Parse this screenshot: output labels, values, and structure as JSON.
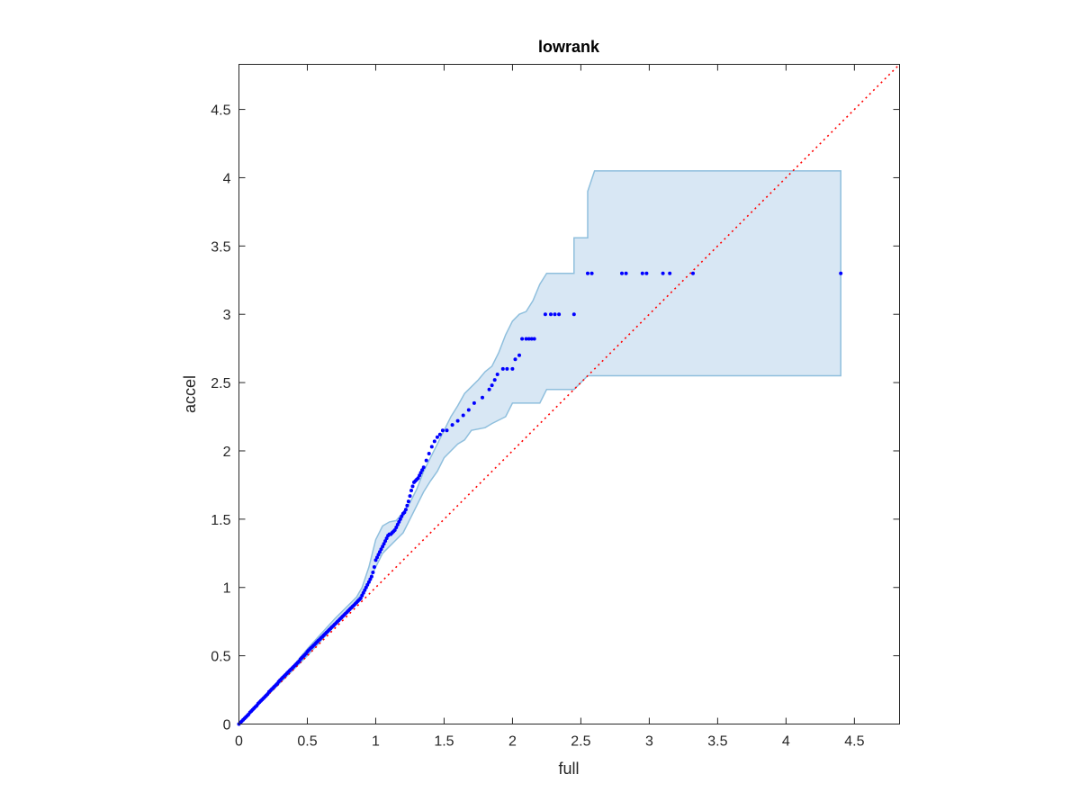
{
  "chart_data": {
    "type": "scatter",
    "title": "lowrank",
    "xlabel": "full",
    "ylabel": "accel",
    "xlim": [
      0,
      4.83
    ],
    "ylim": [
      0,
      4.83
    ],
    "xticks": [
      0,
      0.5,
      1,
      1.5,
      2,
      2.5,
      3,
      3.5,
      4,
      4.5
    ],
    "yticks": [
      0,
      0.5,
      1,
      1.5,
      2,
      2.5,
      3,
      3.5,
      4,
      4.5
    ],
    "xtick_labels": [
      "0",
      "0.5",
      "1",
      "1.5",
      "2",
      "2.5",
      "3",
      "3.5",
      "4",
      "4.5"
    ],
    "ytick_labels": [
      "0",
      "0.5",
      "1",
      "1.5",
      "2",
      "2.5",
      "3",
      "3.5",
      "4",
      "4.5"
    ],
    "grid": false,
    "colors": {
      "points": "#0000ff",
      "reference_line": "#ff0000",
      "band_fill": "#d8e7f4",
      "band_edge": "#8fbfdd",
      "axes": "#262626"
    },
    "reference_line": {
      "x": [
        0,
        4.83
      ],
      "y": [
        0,
        4.83
      ],
      "style": "dotted"
    },
    "band_upper": [
      [
        0,
        0
      ],
      [
        0.1,
        0.11
      ],
      [
        0.2,
        0.22
      ],
      [
        0.3,
        0.33
      ],
      [
        0.4,
        0.43
      ],
      [
        0.5,
        0.55
      ],
      [
        0.6,
        0.66
      ],
      [
        0.7,
        0.77
      ],
      [
        0.8,
        0.87
      ],
      [
        0.86,
        0.93
      ],
      [
        0.9,
        1.0
      ],
      [
        0.95,
        1.15
      ],
      [
        1.0,
        1.35
      ],
      [
        1.05,
        1.45
      ],
      [
        1.1,
        1.48
      ],
      [
        1.15,
        1.49
      ],
      [
        1.2,
        1.55
      ],
      [
        1.25,
        1.62
      ],
      [
        1.3,
        1.72
      ],
      [
        1.35,
        1.85
      ],
      [
        1.4,
        1.95
      ],
      [
        1.45,
        2.05
      ],
      [
        1.5,
        2.15
      ],
      [
        1.55,
        2.25
      ],
      [
        1.6,
        2.33
      ],
      [
        1.65,
        2.42
      ],
      [
        1.7,
        2.47
      ],
      [
        1.75,
        2.52
      ],
      [
        1.8,
        2.58
      ],
      [
        1.85,
        2.62
      ],
      [
        1.9,
        2.72
      ],
      [
        1.95,
        2.85
      ],
      [
        2.0,
        2.95
      ],
      [
        2.05,
        3.0
      ],
      [
        2.1,
        3.02
      ],
      [
        2.15,
        3.1
      ],
      [
        2.2,
        3.22
      ],
      [
        2.25,
        3.3
      ],
      [
        2.45,
        3.3
      ],
      [
        2.45,
        3.56
      ],
      [
        2.55,
        3.56
      ],
      [
        2.55,
        3.9
      ],
      [
        2.6,
        4.05
      ],
      [
        4.4,
        4.05
      ]
    ],
    "band_lower": [
      [
        4.4,
        2.55
      ],
      [
        2.55,
        2.55
      ],
      [
        2.5,
        2.5
      ],
      [
        2.45,
        2.45
      ],
      [
        2.25,
        2.45
      ],
      [
        2.2,
        2.35
      ],
      [
        2.0,
        2.35
      ],
      [
        1.95,
        2.25
      ],
      [
        1.85,
        2.2
      ],
      [
        1.8,
        2.17
      ],
      [
        1.7,
        2.15
      ],
      [
        1.65,
        2.08
      ],
      [
        1.6,
        2.05
      ],
      [
        1.55,
        2.0
      ],
      [
        1.5,
        1.95
      ],
      [
        1.45,
        1.85
      ],
      [
        1.4,
        1.78
      ],
      [
        1.35,
        1.7
      ],
      [
        1.3,
        1.6
      ],
      [
        1.25,
        1.5
      ],
      [
        1.2,
        1.4
      ],
      [
        1.15,
        1.35
      ],
      [
        1.1,
        1.3
      ],
      [
        1.05,
        1.25
      ],
      [
        1.0,
        1.15
      ],
      [
        0.95,
        1.05
      ],
      [
        0.9,
        0.96
      ],
      [
        0.85,
        0.89
      ],
      [
        0.8,
        0.83
      ],
      [
        0.7,
        0.72
      ],
      [
        0.6,
        0.61
      ],
      [
        0.5,
        0.5
      ],
      [
        0.4,
        0.4
      ],
      [
        0.3,
        0.3
      ],
      [
        0.2,
        0.2
      ],
      [
        0.1,
        0.1
      ],
      [
        0,
        0
      ]
    ],
    "points_x": [
      0.0,
      0.01,
      0.02,
      0.03,
      0.04,
      0.05,
      0.06,
      0.07,
      0.08,
      0.09,
      0.1,
      0.11,
      0.12,
      0.13,
      0.14,
      0.15,
      0.16,
      0.17,
      0.18,
      0.19,
      0.2,
      0.21,
      0.22,
      0.23,
      0.24,
      0.25,
      0.26,
      0.27,
      0.28,
      0.29,
      0.3,
      0.31,
      0.32,
      0.33,
      0.34,
      0.35,
      0.36,
      0.37,
      0.38,
      0.39,
      0.4,
      0.41,
      0.42,
      0.43,
      0.44,
      0.45,
      0.46,
      0.47,
      0.48,
      0.49,
      0.5,
      0.51,
      0.52,
      0.53,
      0.54,
      0.55,
      0.56,
      0.57,
      0.58,
      0.59,
      0.6,
      0.61,
      0.62,
      0.63,
      0.64,
      0.65,
      0.66,
      0.67,
      0.68,
      0.69,
      0.7,
      0.71,
      0.72,
      0.73,
      0.74,
      0.75,
      0.76,
      0.77,
      0.78,
      0.79,
      0.8,
      0.81,
      0.82,
      0.83,
      0.84,
      0.85,
      0.86,
      0.87,
      0.88,
      0.89,
      0.9,
      0.91,
      0.92,
      0.93,
      0.94,
      0.95,
      0.96,
      0.97,
      0.98,
      0.99,
      1.0,
      1.01,
      1.02,
      1.03,
      1.04,
      1.05,
      1.06,
      1.07,
      1.08,
      1.09,
      1.1,
      1.11,
      1.12,
      1.13,
      1.14,
      1.15,
      1.16,
      1.17,
      1.18,
      1.19,
      1.2,
      1.21,
      1.22,
      1.23,
      1.24,
      1.25,
      1.26,
      1.27,
      1.28,
      1.29,
      1.3,
      1.31,
      1.32,
      1.33,
      1.34,
      1.35,
      1.37,
      1.39,
      1.41,
      1.43,
      1.45,
      1.47,
      1.49,
      1.52,
      1.56,
      1.6,
      1.64,
      1.68,
      1.72,
      1.78,
      1.83,
      1.85,
      1.87,
      1.89,
      1.93,
      1.96,
      2.0,
      2.02,
      2.05,
      2.07,
      2.1,
      2.12,
      2.14,
      2.16,
      2.24,
      2.28,
      2.31,
      2.34,
      2.45,
      2.55,
      2.58,
      2.8,
      2.83,
      2.95,
      2.98,
      3.1,
      3.15,
      3.32,
      4.4
    ],
    "points_y": [
      0.0,
      0.01,
      0.02,
      0.03,
      0.04,
      0.05,
      0.06,
      0.07,
      0.085,
      0.095,
      0.105,
      0.115,
      0.125,
      0.135,
      0.15,
      0.16,
      0.17,
      0.18,
      0.19,
      0.2,
      0.21,
      0.22,
      0.235,
      0.245,
      0.255,
      0.265,
      0.275,
      0.285,
      0.295,
      0.31,
      0.32,
      0.33,
      0.34,
      0.35,
      0.36,
      0.37,
      0.38,
      0.39,
      0.4,
      0.41,
      0.42,
      0.43,
      0.44,
      0.45,
      0.46,
      0.475,
      0.485,
      0.495,
      0.505,
      0.515,
      0.53,
      0.54,
      0.55,
      0.56,
      0.57,
      0.58,
      0.59,
      0.6,
      0.61,
      0.62,
      0.63,
      0.64,
      0.65,
      0.66,
      0.67,
      0.68,
      0.69,
      0.7,
      0.71,
      0.72,
      0.73,
      0.74,
      0.75,
      0.76,
      0.77,
      0.78,
      0.79,
      0.8,
      0.81,
      0.82,
      0.83,
      0.84,
      0.85,
      0.86,
      0.87,
      0.88,
      0.89,
      0.9,
      0.91,
      0.92,
      0.94,
      0.96,
      0.98,
      1.0,
      1.02,
      1.04,
      1.06,
      1.08,
      1.11,
      1.15,
      1.2,
      1.22,
      1.24,
      1.26,
      1.28,
      1.3,
      1.32,
      1.34,
      1.36,
      1.38,
      1.39,
      1.39,
      1.4,
      1.41,
      1.42,
      1.44,
      1.46,
      1.48,
      1.5,
      1.52,
      1.54,
      1.55,
      1.57,
      1.6,
      1.63,
      1.67,
      1.71,
      1.74,
      1.77,
      1.78,
      1.79,
      1.8,
      1.82,
      1.84,
      1.86,
      1.88,
      1.93,
      1.98,
      2.03,
      2.07,
      2.1,
      2.12,
      2.15,
      2.15,
      2.19,
      2.22,
      2.26,
      2.3,
      2.35,
      2.39,
      2.45,
      2.48,
      2.52,
      2.56,
      2.6,
      2.6,
      2.6,
      2.67,
      2.7,
      2.82,
      2.82,
      2.82,
      2.82,
      2.82,
      3.0,
      3.0,
      3.0,
      3.0,
      3.0,
      3.3,
      3.3,
      3.3,
      3.3,
      3.3,
      3.3,
      3.3,
      3.3,
      3.3,
      3.3
    ]
  }
}
